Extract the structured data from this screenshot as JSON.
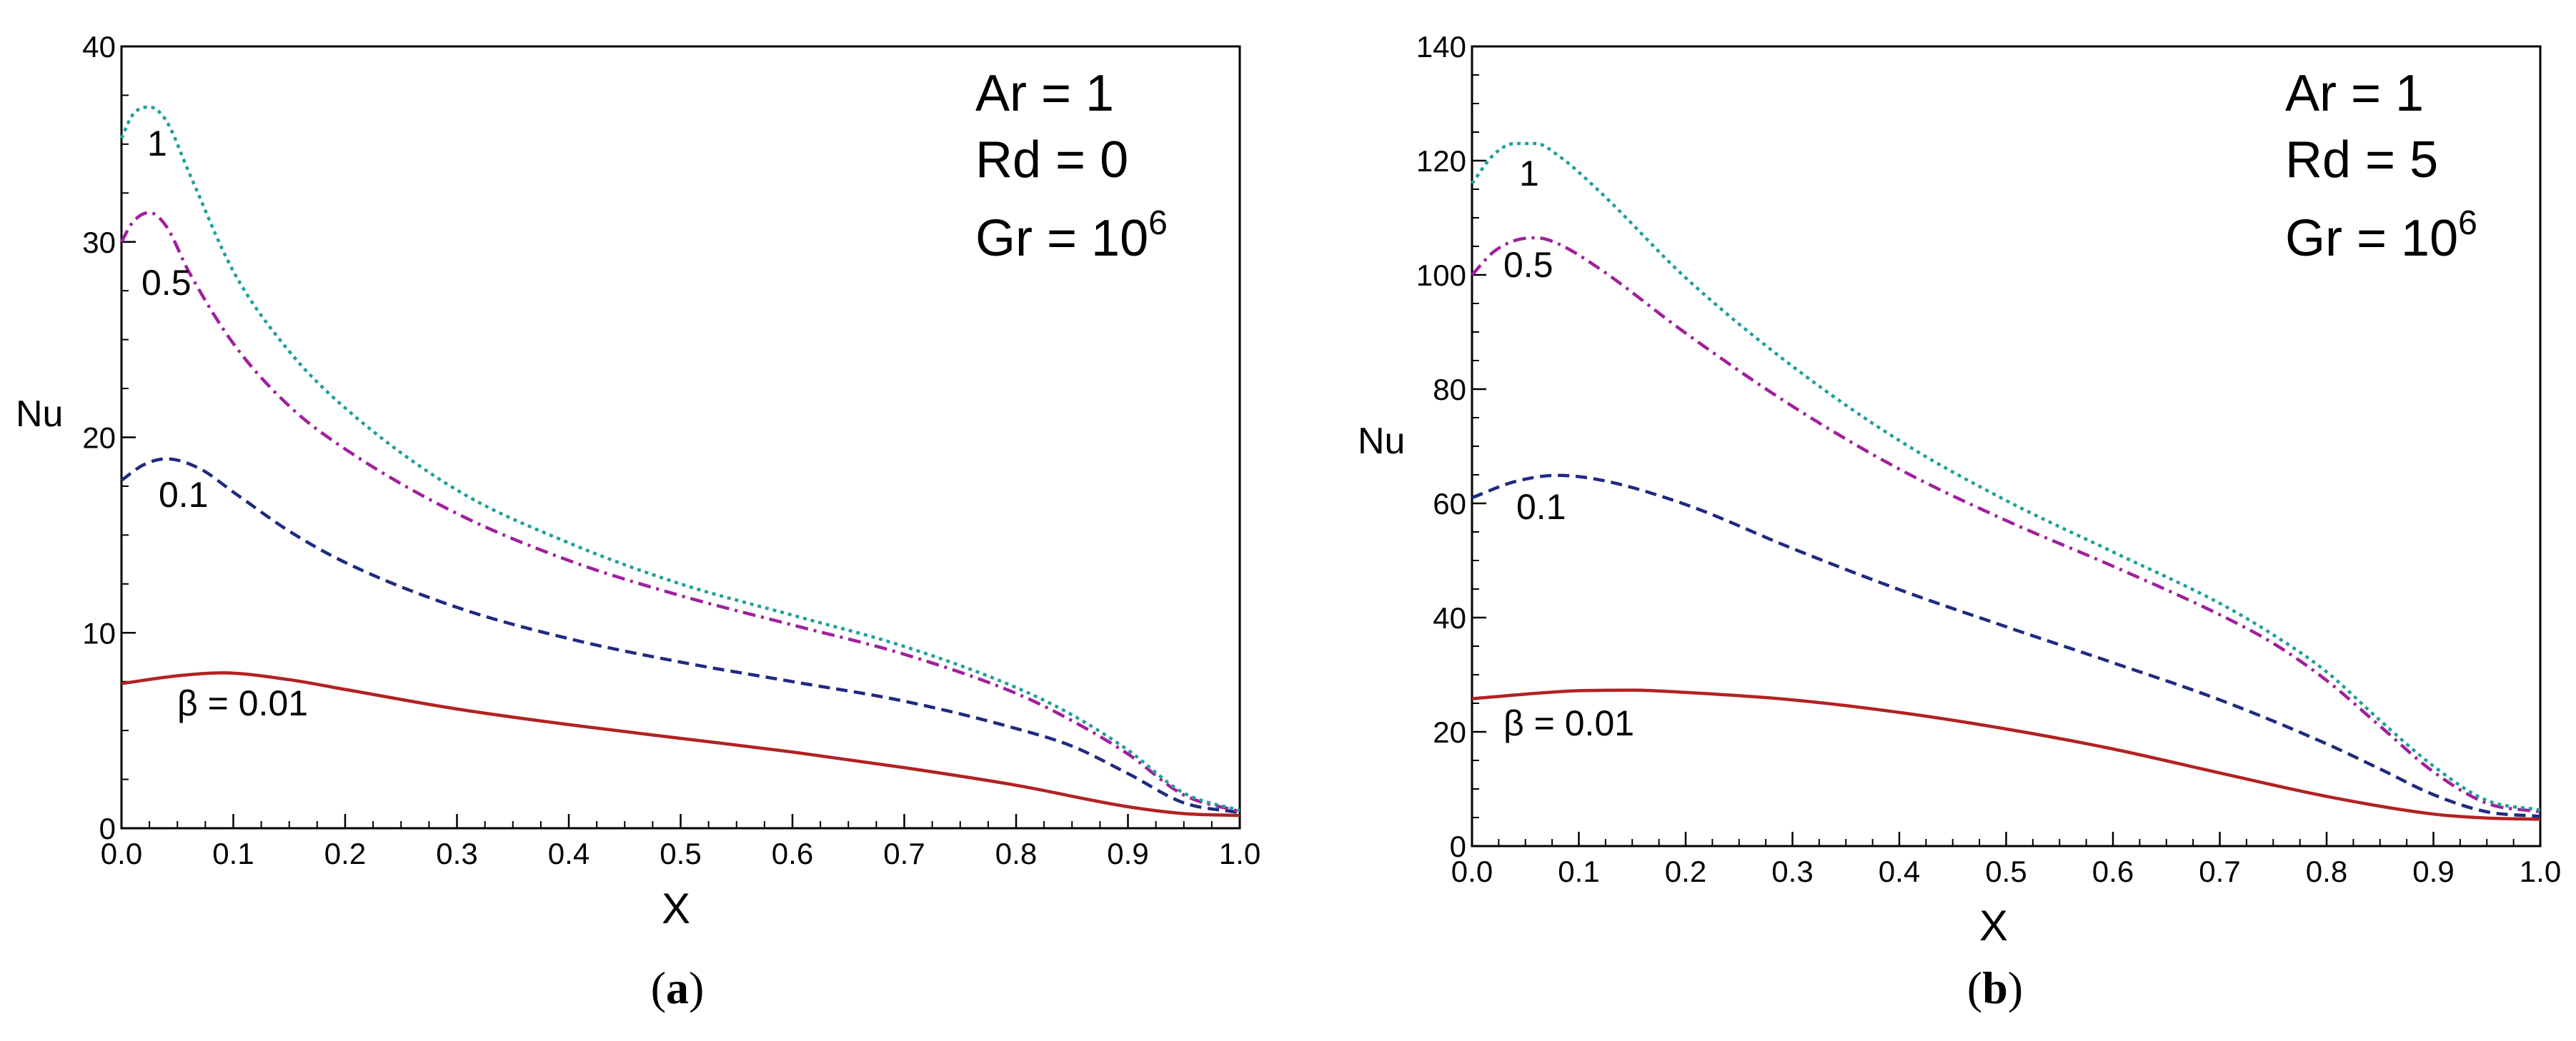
{
  "chart_data": [
    {
      "type": "line",
      "panel": "a",
      "caption_open": "(",
      "caption_letter": "a",
      "caption_close": ")",
      "xlabel": "X",
      "ylabel": "Nu",
      "xlim": [
        0,
        1
      ],
      "ylim": [
        0,
        40
      ],
      "xticks": [
        "0.0",
        "0.1",
        "0.2",
        "0.3",
        "0.4",
        "0.5",
        "0.6",
        "0.7",
        "0.8",
        "0.9",
        "1.0"
      ],
      "yticks": [
        "0",
        "10",
        "20",
        "30",
        "40"
      ],
      "params": [
        {
          "text": "Ar = 1",
          "sup": ""
        },
        {
          "text": "Rd = 0",
          "sup": ""
        },
        {
          "text": "Gr = 10",
          "sup": "6"
        }
      ],
      "series": [
        {
          "name": "β = 0.01",
          "label": "β = 0.01",
          "color": "#b22222",
          "dash": "solid",
          "x": [
            0,
            0.05,
            0.09,
            0.15,
            0.2,
            0.3,
            0.4,
            0.5,
            0.6,
            0.7,
            0.8,
            0.9,
            0.95,
            1.0
          ],
          "y": [
            7.4,
            7.8,
            7.95,
            7.6,
            7.1,
            6.1,
            5.3,
            4.6,
            3.9,
            3.1,
            2.2,
            1.1,
            0.75,
            0.65
          ]
        },
        {
          "name": "0.1",
          "label": "0.1",
          "color": "#1f2a80",
          "dash": "dash",
          "x": [
            0,
            0.02,
            0.04,
            0.07,
            0.1,
            0.15,
            0.2,
            0.3,
            0.4,
            0.5,
            0.6,
            0.7,
            0.8,
            0.85,
            0.9,
            0.95,
            1.0
          ],
          "y": [
            17.8,
            18.6,
            18.9,
            18.4,
            17.2,
            15.2,
            13.6,
            11.3,
            9.7,
            8.5,
            7.5,
            6.5,
            5.1,
            4.2,
            2.8,
            1.3,
            0.8
          ]
        },
        {
          "name": "0.5",
          "label": "0.5",
          "color": "#a0209c",
          "dash": "dashdot",
          "x": [
            0,
            0.01,
            0.025,
            0.04,
            0.06,
            0.1,
            0.15,
            0.2,
            0.3,
            0.4,
            0.5,
            0.6,
            0.7,
            0.8,
            0.85,
            0.9,
            0.95,
            1.0
          ],
          "y": [
            30.0,
            31.0,
            31.5,
            30.8,
            28.5,
            24.8,
            21.6,
            19.4,
            16.1,
            13.7,
            11.9,
            10.4,
            8.9,
            6.9,
            5.5,
            3.8,
            1.7,
            0.85
          ]
        },
        {
          "name": "1",
          "label": "1",
          "color": "#20a09a",
          "dash": "dot",
          "x": [
            0,
            0.01,
            0.025,
            0.04,
            0.06,
            0.1,
            0.15,
            0.2,
            0.3,
            0.4,
            0.5,
            0.6,
            0.7,
            0.8,
            0.85,
            0.9,
            0.95,
            1.0
          ],
          "y": [
            35.3,
            36.5,
            36.9,
            36.2,
            33.6,
            28.5,
            24.4,
            21.5,
            17.3,
            14.6,
            12.5,
            10.9,
            9.3,
            7.2,
            5.8,
            4.0,
            1.8,
            0.9
          ]
        }
      ]
    },
    {
      "type": "line",
      "panel": "b",
      "caption_open": "(",
      "caption_letter": "b",
      "caption_close": ")",
      "xlabel": "X",
      "ylabel": "Nu",
      "xlim": [
        0,
        1
      ],
      "ylim": [
        0,
        140
      ],
      "xticks": [
        "0.0",
        "0.1",
        "0.2",
        "0.3",
        "0.4",
        "0.5",
        "0.6",
        "0.7",
        "0.8",
        "0.9",
        "1.0"
      ],
      "yticks": [
        "0",
        "20",
        "40",
        "60",
        "80",
        "100",
        "120",
        "140"
      ],
      "params": [
        {
          "text": "Ar = 1",
          "sup": ""
        },
        {
          "text": "Rd = 5",
          "sup": ""
        },
        {
          "text": "Gr = 10",
          "sup": "6"
        }
      ],
      "series": [
        {
          "name": "β = 0.01",
          "label": "β = 0.01",
          "color": "#b22222",
          "dash": "solid",
          "x": [
            0,
            0.05,
            0.1,
            0.15,
            0.2,
            0.3,
            0.4,
            0.5,
            0.6,
            0.7,
            0.8,
            0.9,
            0.95,
            1.0
          ],
          "y": [
            25.8,
            26.6,
            27.2,
            27.3,
            26.9,
            25.6,
            23.4,
            20.5,
            17.0,
            12.8,
            8.7,
            5.6,
            4.9,
            4.7
          ]
        },
        {
          "name": "0.1",
          "label": "0.1",
          "color": "#1f2a80",
          "dash": "dash",
          "x": [
            0,
            0.04,
            0.08,
            0.12,
            0.2,
            0.3,
            0.4,
            0.5,
            0.6,
            0.7,
            0.8,
            0.85,
            0.9,
            0.95,
            1.0
          ],
          "y": [
            61.0,
            63.8,
            64.9,
            64.1,
            59.8,
            52.1,
            44.9,
            38.4,
            32.1,
            25.6,
            17.9,
            13.5,
            9.0,
            6.0,
            5.2
          ]
        },
        {
          "name": "0.5",
          "label": "0.5",
          "color": "#a0209c",
          "dash": "dashdot",
          "x": [
            0,
            0.02,
            0.04,
            0.06,
            0.08,
            0.12,
            0.2,
            0.3,
            0.4,
            0.5,
            0.6,
            0.7,
            0.75,
            0.8,
            0.85,
            0.9,
            0.95,
            1.0
          ],
          "y": [
            100.0,
            104.0,
            106.0,
            106.5,
            105.5,
            101.0,
            89.8,
            77.0,
            66.0,
            57.0,
            49.0,
            40.5,
            35.5,
            29.0,
            21.0,
            13.0,
            7.5,
            6.0
          ]
        },
        {
          "name": "1",
          "label": "1",
          "color": "#20a09a",
          "dash": "dot",
          "x": [
            0,
            0.02,
            0.04,
            0.06,
            0.08,
            0.12,
            0.2,
            0.3,
            0.4,
            0.5,
            0.6,
            0.7,
            0.75,
            0.8,
            0.85,
            0.9,
            0.95,
            1.0
          ],
          "y": [
            116.0,
            121.0,
            123.0,
            123.0,
            121.0,
            114.5,
            99.5,
            84.0,
            71.0,
            60.5,
            51.5,
            42.5,
            37.0,
            30.5,
            22.0,
            14.0,
            8.0,
            6.3
          ]
        }
      ]
    }
  ]
}
